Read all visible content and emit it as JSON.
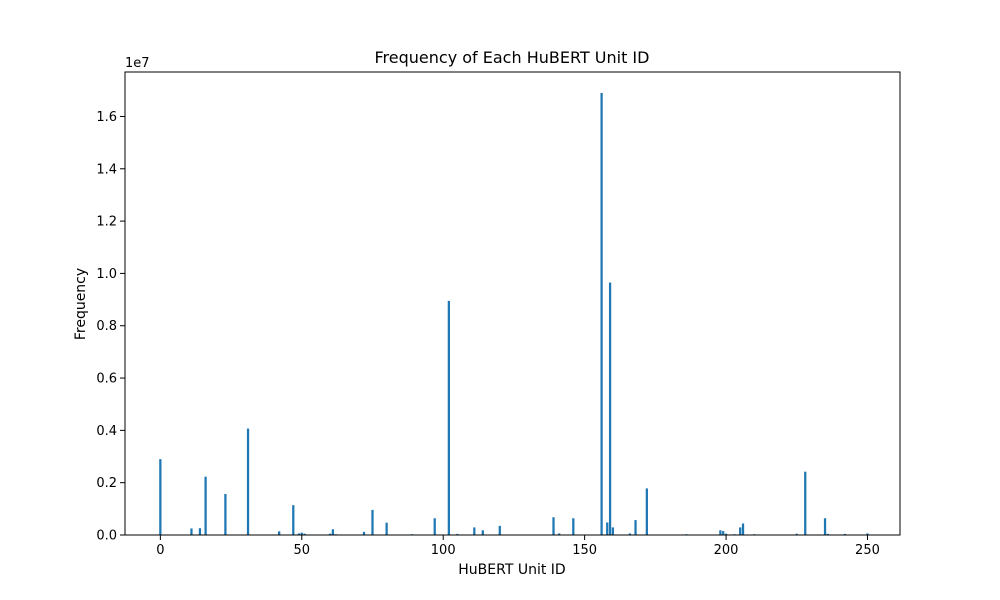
{
  "chart_data": {
    "type": "bar",
    "title": "Frequency of Each HuBERT Unit ID",
    "xlabel": "HuBERT Unit ID",
    "ylabel": "Frequency",
    "y_scale_label": "1e7",
    "xlim": [
      -12.5,
      261.5
    ],
    "ylim": [
      0,
      17700000
    ],
    "x_ticks": [
      0,
      50,
      100,
      150,
      200,
      250
    ],
    "x_tick_labels": [
      "0",
      "50",
      "100",
      "150",
      "200",
      "250"
    ],
    "y_ticks": [
      0,
      2000000,
      4000000,
      6000000,
      8000000,
      10000000,
      12000000,
      14000000,
      16000000
    ],
    "y_tick_labels": [
      "0.0",
      "0.2",
      "0.4",
      "0.6",
      "0.8",
      "1.0",
      "1.2",
      "1.4",
      "1.6"
    ],
    "bar_color": "#1f77b4",
    "grid": false,
    "x": [
      0,
      11,
      14,
      16,
      23,
      31,
      42,
      47,
      49,
      50,
      51,
      60,
      61,
      62,
      72,
      75,
      80,
      89,
      97,
      102,
      105,
      111,
      114,
      120,
      130,
      139,
      141,
      146,
      156,
      158,
      159,
      160,
      166,
      168,
      172,
      186,
      198,
      199,
      200,
      203,
      205,
      206,
      210,
      225,
      228,
      231,
      235,
      236,
      240,
      242,
      245,
      250
    ],
    "values": [
      2900000,
      250000,
      260000,
      2230000,
      1570000,
      4070000,
      140000,
      1140000,
      60000,
      90000,
      50000,
      50000,
      220000,
      30000,
      120000,
      960000,
      470000,
      30000,
      640000,
      8950000,
      40000,
      290000,
      180000,
      350000,
      20000,
      680000,
      60000,
      640000,
      16900000,
      480000,
      9650000,
      290000,
      60000,
      570000,
      1780000,
      30000,
      180000,
      150000,
      50000,
      30000,
      290000,
      440000,
      30000,
      50000,
      2420000,
      20000,
      640000,
      40000,
      20000,
      40000,
      20000,
      60000
    ]
  }
}
